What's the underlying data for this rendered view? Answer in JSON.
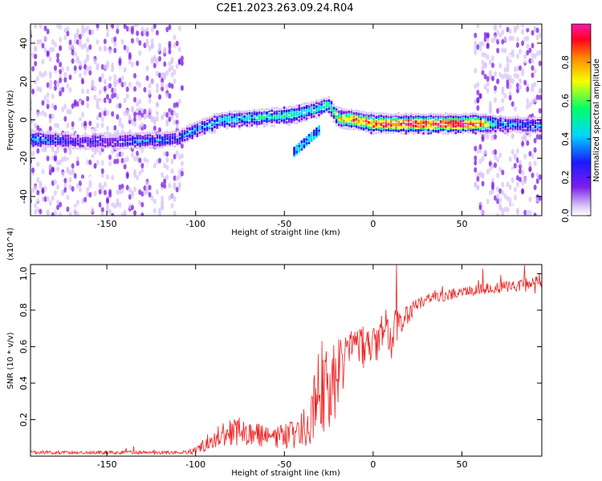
{
  "figure": {
    "title": "C2E1.2023.263.09.24.R04"
  },
  "colors": {
    "snr_line": "#ee2020",
    "axis": "#000000",
    "colormap": [
      "#ffffff",
      "#d9c6f5",
      "#7c1ee8",
      "#1a1aff",
      "#00d7ff",
      "#00ff66",
      "#f5ff00",
      "#ff8c00",
      "#ff0020",
      "#ff1aa8"
    ]
  },
  "chart_data": [
    {
      "type": "heatmap",
      "xlabel": "Height of straight line (km)",
      "ylabel": "Frequency (Hz)",
      "xlim": [
        -193,
        95
      ],
      "ylim": [
        -50,
        50
      ],
      "xticks": [
        -150,
        -100,
        -50,
        0,
        50
      ],
      "yticks": [
        -40,
        -20,
        0,
        20,
        40
      ],
      "colorbar": {
        "label": "Normalized spectral amplitude",
        "range": [
          0,
          1
        ],
        "ticks": [
          0.0,
          0.2,
          0.4,
          0.6,
          0.8
        ]
      },
      "ridge": [
        {
          "x": -190,
          "y": -10,
          "amp": 0.45
        },
        {
          "x": -170,
          "y": -11,
          "amp": 0.3
        },
        {
          "x": -150,
          "y": -11,
          "amp": 0.3
        },
        {
          "x": -130,
          "y": -11,
          "amp": 0.4
        },
        {
          "x": -110,
          "y": -10,
          "amp": 0.35
        },
        {
          "x": -100,
          "y": -5,
          "amp": 0.45
        },
        {
          "x": -85,
          "y": 0,
          "amp": 0.45
        },
        {
          "x": -70,
          "y": 1,
          "amp": 0.5
        },
        {
          "x": -55,
          "y": 2,
          "amp": 0.5
        },
        {
          "x": -45,
          "y": 3,
          "amp": 0.55
        },
        {
          "x": -35,
          "y": 5,
          "amp": 0.5
        },
        {
          "x": -25,
          "y": 8,
          "amp": 0.55
        },
        {
          "x": -20,
          "y": 1,
          "amp": 0.75
        },
        {
          "x": -10,
          "y": 0,
          "amp": 0.9
        },
        {
          "x": 0,
          "y": -2,
          "amp": 0.9
        },
        {
          "x": 20,
          "y": -2,
          "amp": 0.95
        },
        {
          "x": 40,
          "y": -2,
          "amp": 1.0
        },
        {
          "x": 57,
          "y": -2,
          "amp": 1.0
        },
        {
          "x": 70,
          "y": -2,
          "amp": 0.45
        },
        {
          "x": 90,
          "y": -3,
          "amp": 0.4
        }
      ]
    },
    {
      "type": "line",
      "xlabel": "Height of straight line (km)",
      "ylabel": "SNR (10 * v/v)",
      "yscale_note": "(x10^4)",
      "xlim": [
        -193,
        95
      ],
      "ylim": [
        0,
        1.05
      ],
      "xticks": [
        -150,
        -100,
        -50,
        0,
        50
      ],
      "yticks": [
        0.2,
        0.4,
        0.6,
        0.8,
        1.0
      ],
      "series": [
        {
          "x": [
            -193,
            -180,
            -160,
            -140,
            -120,
            -105,
            -100,
            -95,
            -90,
            -85,
            -80,
            -75,
            -70,
            -65,
            -60,
            -55,
            -50,
            -45,
            -40,
            -35,
            -32,
            -30,
            -28,
            -25,
            -22,
            -20,
            -18,
            -15,
            -12,
            -10,
            -8,
            -5,
            -2,
            0,
            3,
            6,
            8,
            10,
            12,
            15,
            18,
            20,
            25,
            30,
            35,
            40,
            45,
            50,
            55,
            60,
            65,
            70,
            75,
            80,
            85,
            90,
            95
          ],
          "y": [
            0.02,
            0.02,
            0.02,
            0.02,
            0.02,
            0.02,
            0.03,
            0.06,
            0.1,
            0.12,
            0.13,
            0.14,
            0.13,
            0.12,
            0.1,
            0.1,
            0.11,
            0.12,
            0.14,
            0.22,
            0.35,
            0.4,
            0.38,
            0.35,
            0.4,
            0.45,
            0.5,
            0.55,
            0.58,
            0.6,
            0.62,
            0.6,
            0.58,
            0.6,
            0.62,
            0.66,
            0.68,
            0.64,
            0.7,
            0.74,
            0.76,
            0.78,
            0.84,
            0.86,
            0.87,
            0.88,
            0.89,
            0.9,
            0.91,
            0.91,
            0.92,
            0.92,
            0.93,
            0.93,
            0.94,
            0.94,
            0.95
          ],
          "noise": [
            0.01,
            0.01,
            0.01,
            0.01,
            0.01,
            0.01,
            0.02,
            0.04,
            0.06,
            0.07,
            0.08,
            0.08,
            0.07,
            0.06,
            0.06,
            0.06,
            0.07,
            0.08,
            0.1,
            0.15,
            0.22,
            0.26,
            0.25,
            0.22,
            0.22,
            0.2,
            0.18,
            0.15,
            0.13,
            0.12,
            0.12,
            0.12,
            0.1,
            0.1,
            0.12,
            0.14,
            0.14,
            0.12,
            0.1,
            0.08,
            0.06,
            0.05,
            0.04,
            0.03,
            0.03,
            0.03,
            0.03,
            0.03,
            0.03,
            0.03,
            0.03,
            0.03,
            0.03,
            0.03,
            0.04,
            0.05,
            0.06
          ]
        }
      ]
    }
  ]
}
